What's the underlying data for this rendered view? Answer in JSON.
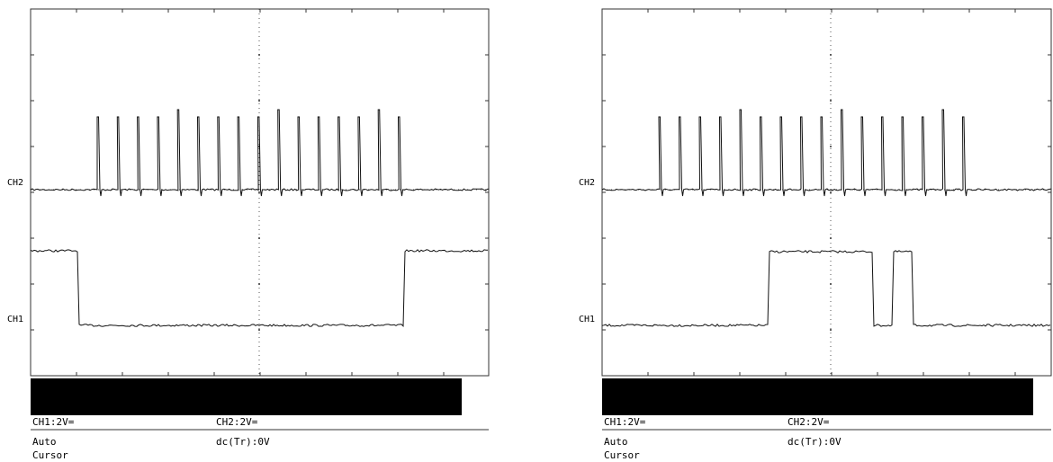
{
  "panels": [
    {
      "ch2_marker": "CH2",
      "ch1_marker": "CH1",
      "ch1_scale": "CH1:2V=",
      "ch2_scale": "CH2:2V=",
      "mode": "Auto",
      "trigger": "dc(Tr):0V",
      "cursor": "Cursor"
    },
    {
      "ch2_marker": "CH2",
      "ch1_marker": "CH1",
      "ch1_scale": "CH1:2V=",
      "ch2_scale": "CH2:2V=",
      "mode": "Auto",
      "trigger": "dc(Tr):0V",
      "cursor": "Cursor"
    }
  ]
}
